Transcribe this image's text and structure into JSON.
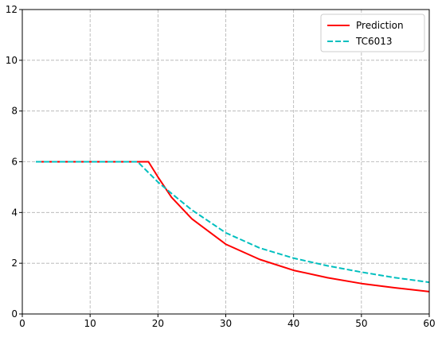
{
  "chart_data": {
    "type": "line",
    "title": "",
    "xlabel": "",
    "ylabel": "",
    "xlim": [
      0,
      60
    ],
    "ylim": [
      0,
      12
    ],
    "xticks": [
      0,
      10,
      20,
      30,
      40,
      50,
      60
    ],
    "yticks": [
      0,
      2,
      4,
      6,
      8,
      10,
      12
    ],
    "grid": true,
    "legend_position": "top-right",
    "series": [
      {
        "name": "Prediction",
        "color": "#ff0000",
        "dash": "solid",
        "points": [
          [
            2,
            6
          ],
          [
            10,
            6
          ],
          [
            18.6,
            6
          ],
          [
            20,
            5.4
          ],
          [
            22,
            4.6
          ],
          [
            25,
            3.75
          ],
          [
            30,
            2.75
          ],
          [
            35,
            2.15
          ],
          [
            40,
            1.72
          ],
          [
            45,
            1.43
          ],
          [
            50,
            1.2
          ],
          [
            55,
            1.03
          ],
          [
            60,
            0.88
          ]
        ]
      },
      {
        "name": "TC6013",
        "color": "#00bfbf",
        "dash": "dashed",
        "points": [
          [
            2,
            6
          ],
          [
            10,
            6
          ],
          [
            17,
            6
          ],
          [
            20,
            5.2
          ],
          [
            22,
            4.75
          ],
          [
            25,
            4.1
          ],
          [
            30,
            3.2
          ],
          [
            35,
            2.6
          ],
          [
            40,
            2.2
          ],
          [
            45,
            1.9
          ],
          [
            50,
            1.65
          ],
          [
            55,
            1.43
          ],
          [
            60,
            1.25
          ]
        ]
      }
    ]
  }
}
